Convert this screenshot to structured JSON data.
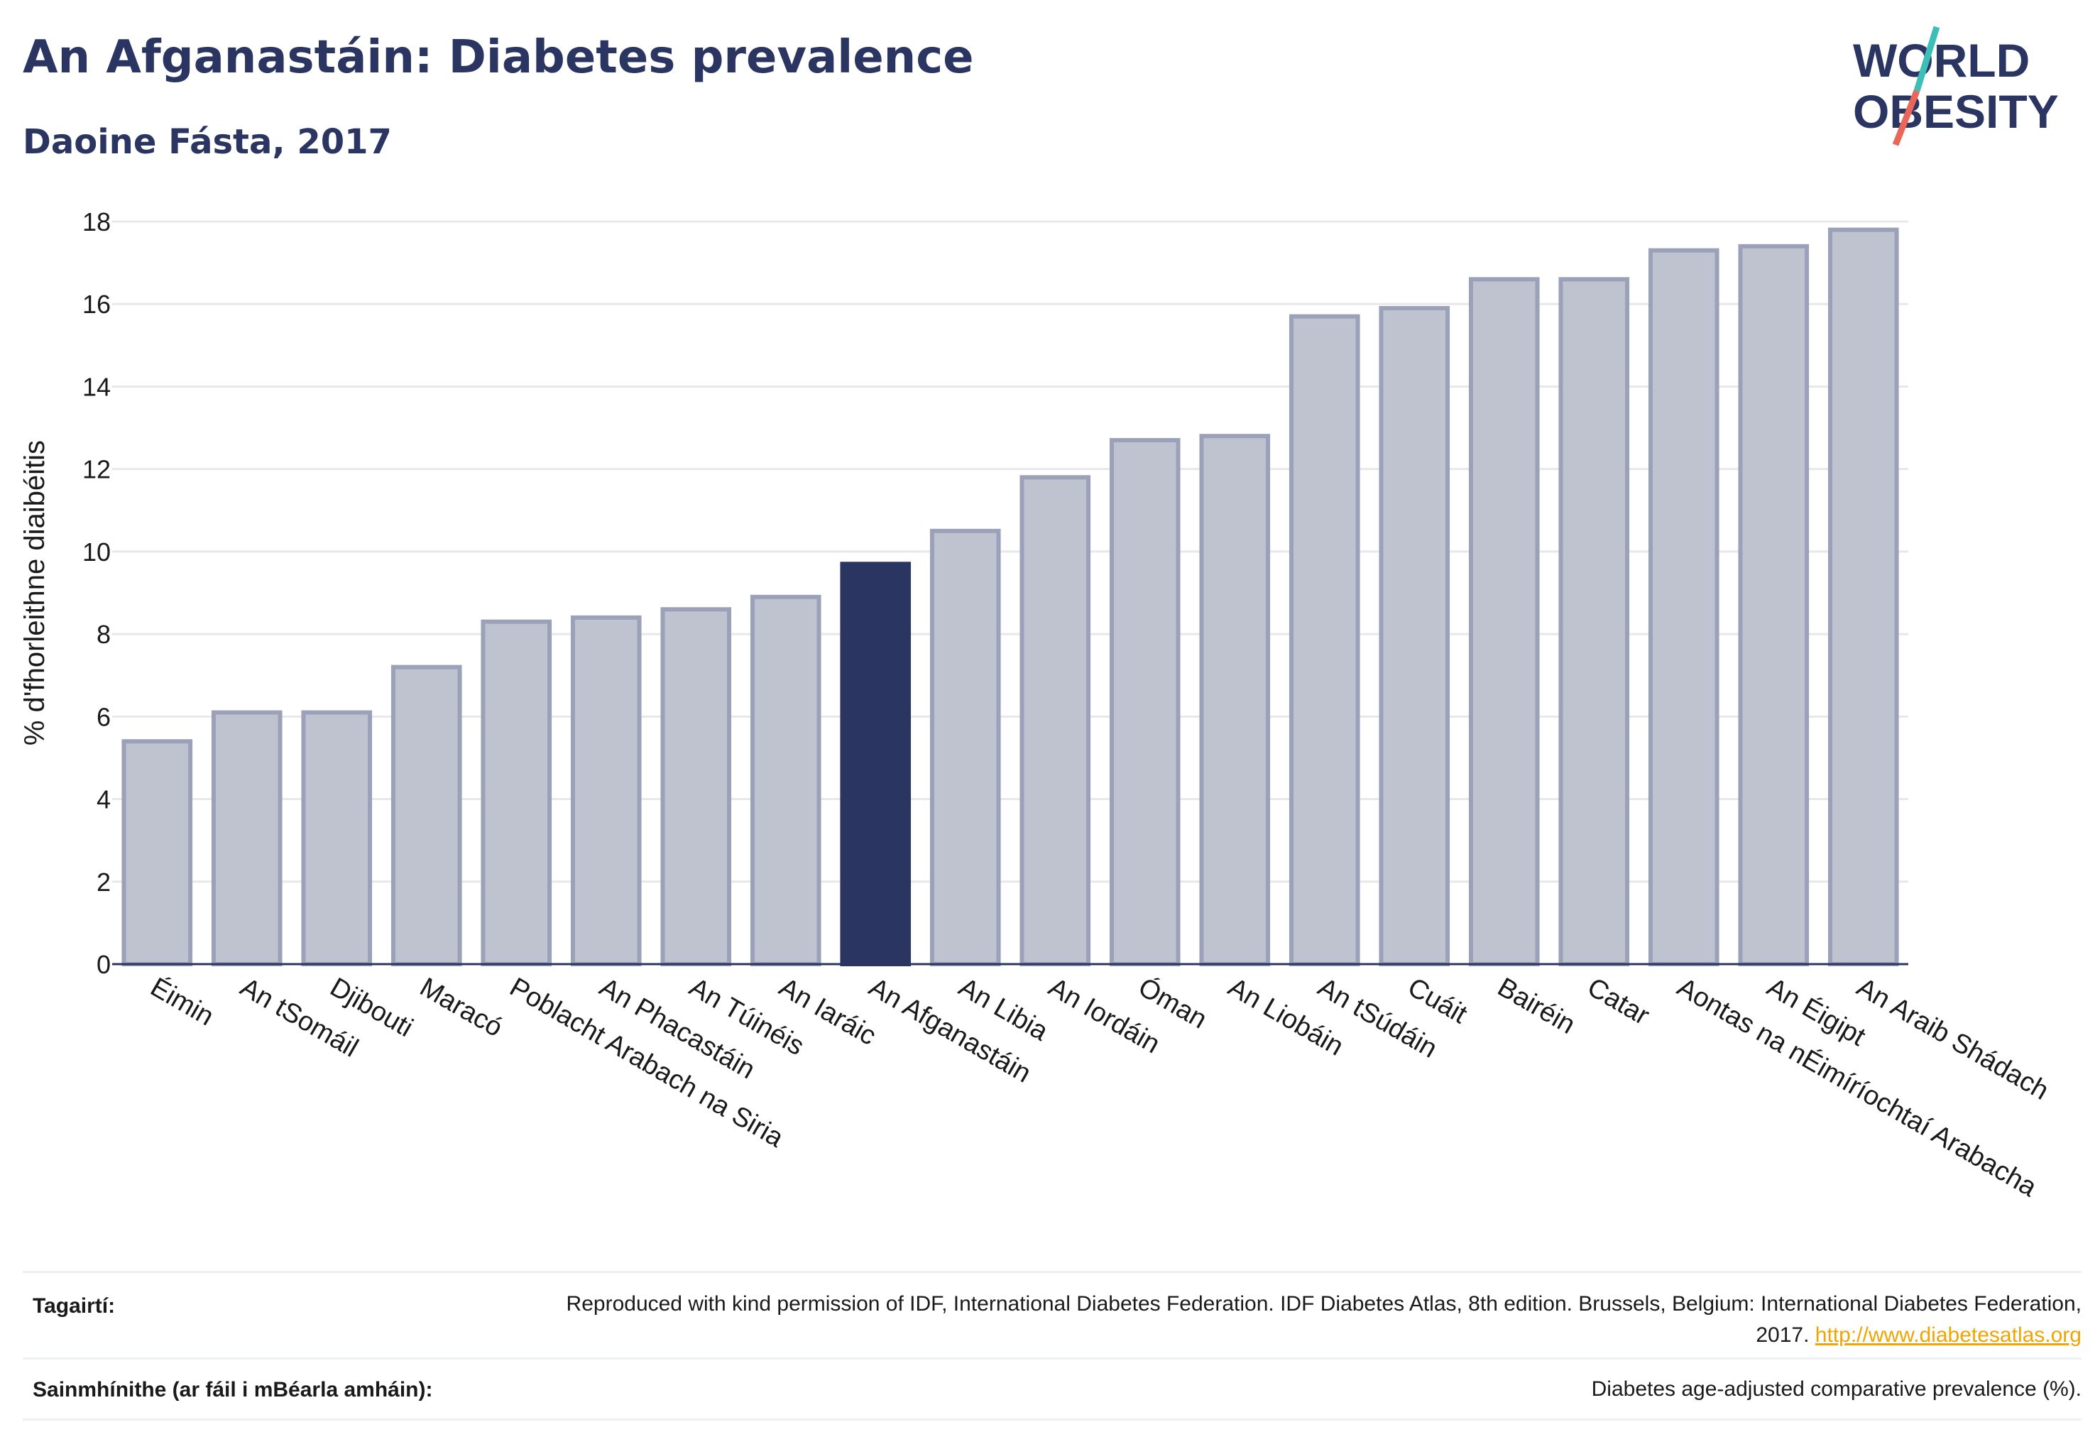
{
  "header": {
    "title": "An Afganastáin: Diabetes prevalence",
    "subtitle": "Daoine Fásta, 2017"
  },
  "logo": {
    "line1": "WORLD",
    "line2": "OBESITY",
    "accent_colors": [
      "#3dbfb8",
      "#e8675a"
    ]
  },
  "chart_data": {
    "type": "bar",
    "ylabel": "% d'fhorleithne diaibéitis",
    "ylim": [
      0,
      18
    ],
    "yticks": [
      0,
      2,
      4,
      6,
      8,
      10,
      12,
      14,
      16,
      18
    ],
    "grid": true,
    "categories": [
      "Éimin",
      "An tSomáil",
      "Djibouti",
      "Maracó",
      "Poblacht Arabach na Siria",
      "An Phacastáin",
      "An Túinéis",
      "An Iaráic",
      "An Afganastáin",
      "An Libia",
      "An Iordáin",
      "Óman",
      "An Liobáin",
      "An tSúdáin",
      "Cuáit",
      "Bairéin",
      "Catar",
      "Aontas na nÉimíríochtaí Arabacha",
      "An Éigipt",
      "An Araib Shádach"
    ],
    "values": [
      5.4,
      6.1,
      6.1,
      7.2,
      8.3,
      8.4,
      8.6,
      8.9,
      9.7,
      10.5,
      11.8,
      12.7,
      12.8,
      15.7,
      15.9,
      16.6,
      16.6,
      17.3,
      17.4,
      17.8
    ],
    "highlight": "An Afganastáin",
    "colors": {
      "highlight": "#2b3561",
      "bar": "#bfc3d0",
      "bar_edge": "#9aa1b8",
      "axis": "#2b3561",
      "grid": "#e8e8ec"
    }
  },
  "footer": {
    "references_label": "Tagairtí:",
    "references_text": "Reproduced with kind permission of IDF, International Diabetes Federation. IDF Diabetes Atlas, 8th edition. Brussels, Belgium: International Diabetes Federation, 2017.",
    "references_link": "http://www.diabetesatlas.org",
    "definitions_label": "Sainmhínithe (ar fáil i mBéarla amháin):",
    "definitions_text": "Diabetes age-adjusted comparative prevalence (%)."
  }
}
